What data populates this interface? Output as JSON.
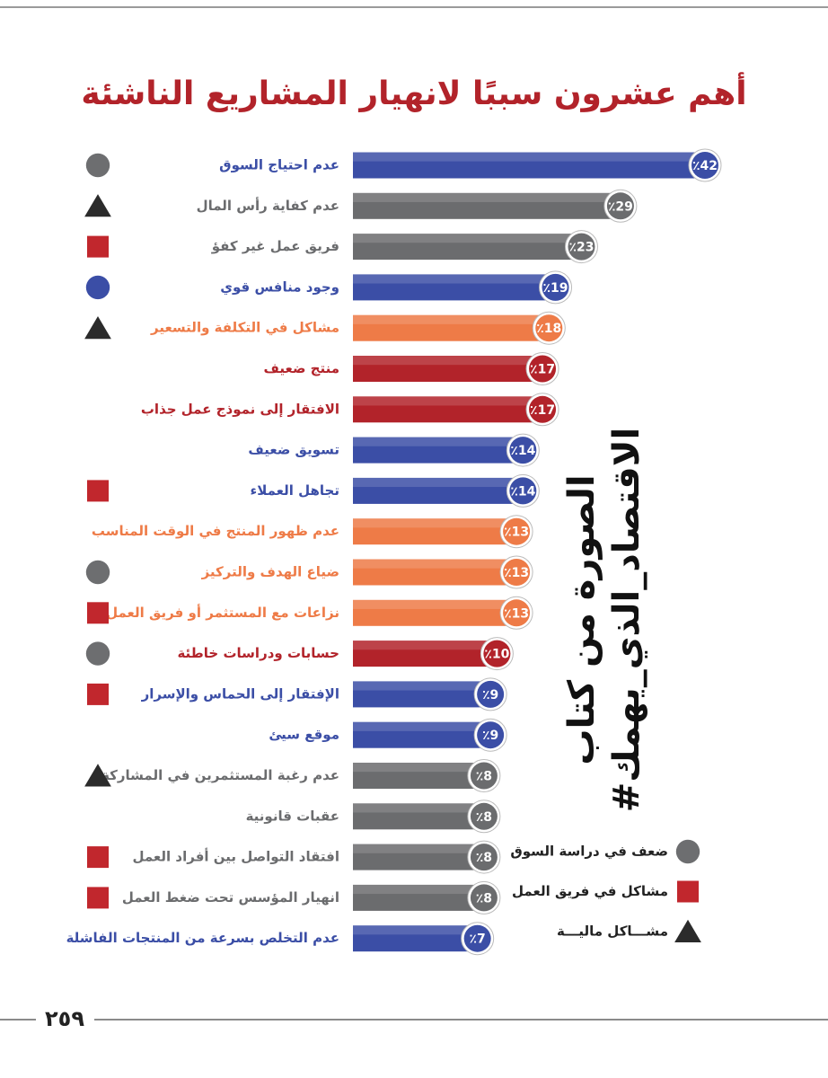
{
  "chart_data": {
    "type": "bar",
    "title": "أهم عشرون سببًا لانهيار المشاريع الناشئة",
    "categories": [
      "عدم احتياج السوق",
      "عدم كفاية رأس المال",
      "فريق عمل غير كفؤ",
      "وجود منافس قوي",
      "مشاكل في التكلفة والتسعير",
      "منتج ضعيف",
      "الافتقار إلى نموذج عمل جذاب",
      "تسويق ضعيف",
      "تجاهل العملاء",
      "عدم ظهور المنتج في الوقت المناسب",
      "ضياع الهدف والتركيز",
      "نزاعات مع المستثمر أو فريق العمل",
      "حسابات ودراسات خاطئة",
      "الإفتقار إلى الحماس والإسرار",
      "موقع سيئ",
      "عدم رغبة المستثمرين في المشاركة",
      "عقبات قانونية",
      "افتقاد التواصل بين أفراد العمل",
      "انهيار المؤسس تحت ضغط العمل",
      "عدم التخلص بسرعة من المنتجات الفاشلة"
    ],
    "values": [
      42,
      29,
      23,
      19,
      18,
      17,
      17,
      14,
      14,
      13,
      13,
      13,
      10,
      9,
      9,
      8,
      8,
      8,
      8,
      7
    ],
    "value_labels": [
      "٪42",
      "٪29",
      "٪23",
      "٪19",
      "٪18",
      "٪17",
      "٪17",
      "٪14",
      "٪14",
      "٪13",
      "٪13",
      "٪13",
      "٪10",
      "٪9",
      "٪9",
      "٪8",
      "٪8",
      "٪8",
      "٪8",
      "٪7"
    ],
    "colors": [
      "#3b4ea6",
      "#6b6c6e",
      "#6b6c6e",
      "#3b4ea6",
      "#ee7b47",
      "#b2232a",
      "#b2232a",
      "#3b4ea6",
      "#3b4ea6",
      "#ee7b47",
      "#ee7b47",
      "#ee7b47",
      "#b2232a",
      "#3b4ea6",
      "#3b4ea6",
      "#6b6c6e",
      "#6b6c6e",
      "#6b6c6e",
      "#6b6c6e",
      "#3b4ea6"
    ],
    "markers": [
      {
        "shape": "circle",
        "color": "#6d6e70"
      },
      {
        "shape": "triangle",
        "color": "#2b2b2b"
      },
      {
        "shape": "square",
        "color": "#c1272d"
      },
      {
        "shape": "circle",
        "color": "#3b4ea6"
      },
      {
        "shape": "triangle",
        "color": "#2b2b2b"
      },
      null,
      null,
      null,
      {
        "shape": "square",
        "color": "#c1272d"
      },
      null,
      {
        "shape": "circle",
        "color": "#6d6e70"
      },
      {
        "shape": "square",
        "color": "#c1272d"
      },
      {
        "shape": "circle",
        "color": "#6d6e70"
      },
      {
        "shape": "square",
        "color": "#c1272d"
      },
      null,
      {
        "shape": "triangle",
        "color": "#2b2b2b"
      },
      null,
      {
        "shape": "square",
        "color": "#c1272d"
      },
      {
        "shape": "square",
        "color": "#c1272d"
      },
      null
    ],
    "legend": [
      {
        "label": "ضعف في دراسة السوق",
        "shape": "circle",
        "color": "#6d6e70"
      },
      {
        "label": "مشاكل في فريق العمل",
        "shape": "square",
        "color": "#c1272d"
      },
      {
        "label": "مشـــاكل ماليـــة",
        "shape": "triangle",
        "color": "#2b2b2b"
      }
    ]
  },
  "watermark": [
    "#الاقتصاد_الذي_يهمك",
    "الصورة من كتاب"
  ],
  "page_number": "٢٥٩"
}
